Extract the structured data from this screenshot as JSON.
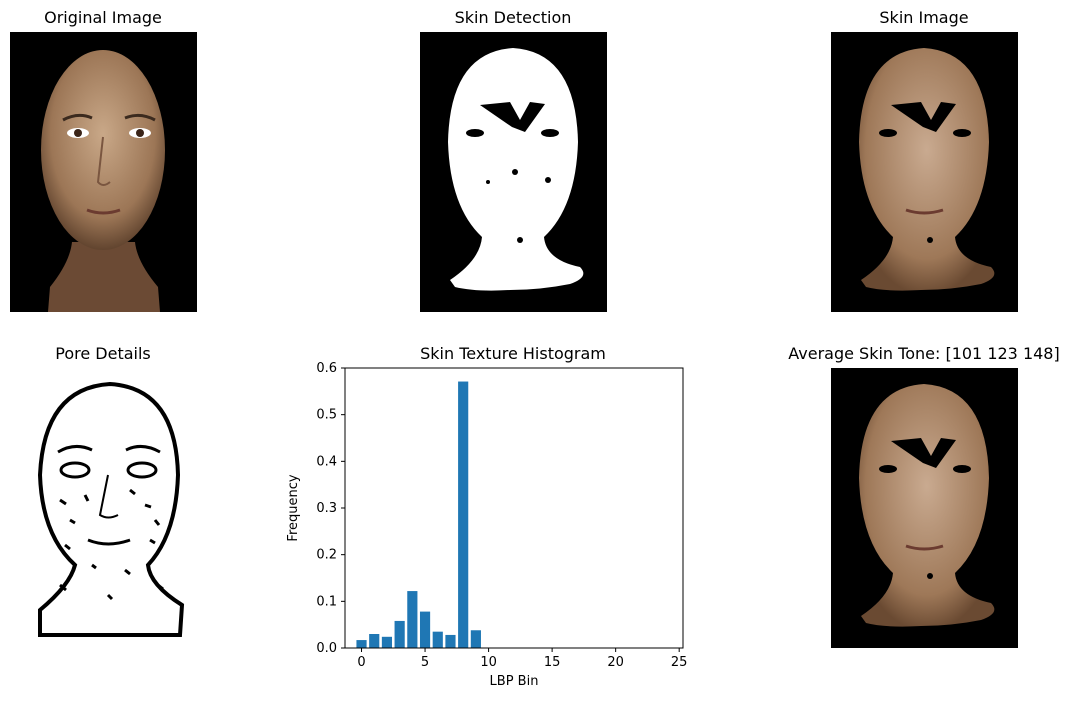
{
  "panels": {
    "original": {
      "title": "Original Image"
    },
    "detection": {
      "title": "Skin Detection"
    },
    "skin": {
      "title": "Skin Image"
    },
    "pores": {
      "title": "Pore Details"
    },
    "histogram": {
      "title": "Skin Texture Histogram"
    },
    "average": {
      "title": "Average Skin Tone: [101 123 148]"
    }
  },
  "colors": {
    "bar": "#1f77b4",
    "skin": "#a88468",
    "skin_dark": "#7a5640"
  },
  "chart_data": {
    "type": "bar",
    "title": "Skin Texture Histogram",
    "xlabel": "LBP Bin",
    "ylabel": "Frequency",
    "categories": [
      0,
      1,
      2,
      3,
      4,
      5,
      6,
      7,
      8,
      9
    ],
    "values": [
      0.017,
      0.03,
      0.024,
      0.058,
      0.122,
      0.078,
      0.035,
      0.028,
      0.571,
      0.038
    ],
    "xlim": [
      -1.3,
      25.3
    ],
    "ylim": [
      0,
      0.6
    ],
    "xticks": [
      0,
      5,
      10,
      15,
      20,
      25
    ],
    "yticks": [
      0.0,
      0.1,
      0.2,
      0.3,
      0.4,
      0.5,
      0.6
    ],
    "ytick_labels": [
      "0.0",
      "0.1",
      "0.2",
      "0.3",
      "0.4",
      "0.5",
      "0.6"
    ],
    "grid": false
  }
}
